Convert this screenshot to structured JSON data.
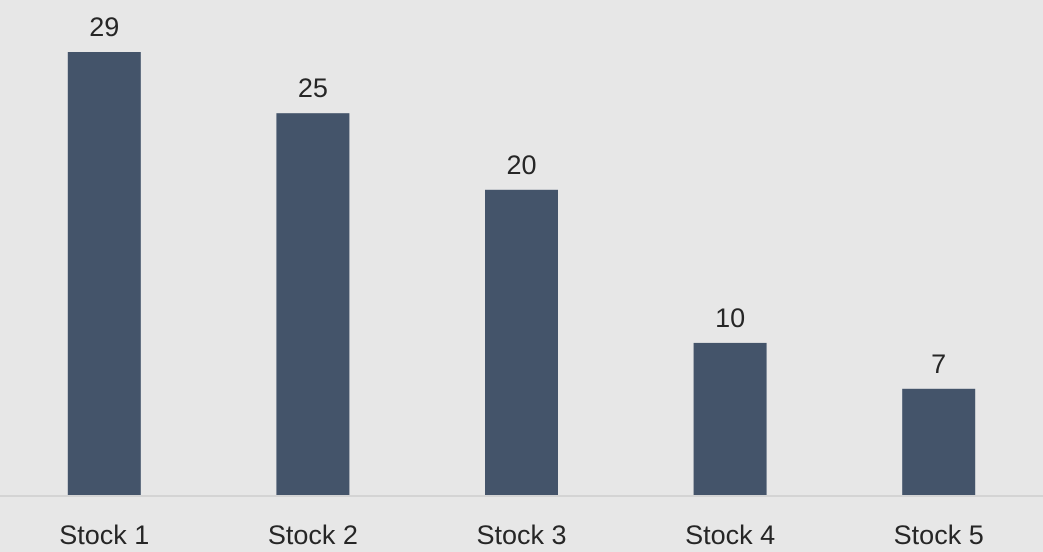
{
  "chart_data": {
    "type": "bar",
    "categories": [
      "Stock 1",
      "Stock 2",
      "Stock 3",
      "Stock 4",
      "Stock 5"
    ],
    "values": [
      29,
      25,
      20,
      10,
      7
    ],
    "title": "",
    "xlabel": "",
    "ylabel": "",
    "ylim": [
      0,
      29
    ],
    "data_labels": true,
    "grid": false,
    "legend": "none",
    "colors": {
      "bar": "#44546a",
      "background": "#e7e7e7",
      "axis": "#d4d4d4",
      "text": "#262626"
    }
  }
}
